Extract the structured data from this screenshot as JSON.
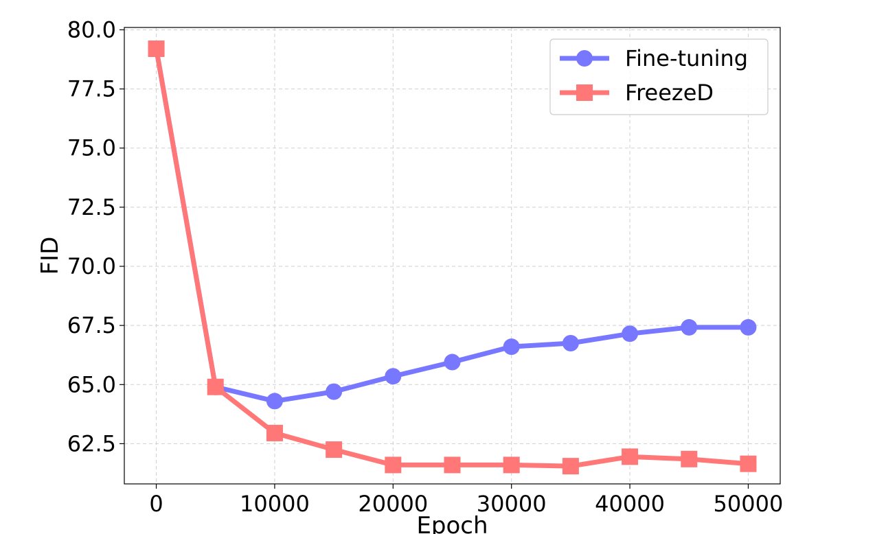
{
  "chart_data": {
    "type": "line",
    "xlabel": "Epoch",
    "ylabel": "FID",
    "xlim": [
      -2700,
      52700
    ],
    "ylim": [
      60.8,
      80.1
    ],
    "xticks": [
      0,
      10000,
      20000,
      30000,
      40000,
      50000
    ],
    "xtick_labels": [
      "0",
      "10000",
      "20000",
      "30000",
      "40000",
      "50000"
    ],
    "yticks": [
      62.5,
      65.0,
      67.5,
      70.0,
      72.5,
      75.0,
      77.5,
      80.0
    ],
    "ytick_labels": [
      "62.5",
      "65.0",
      "67.5",
      "70.0",
      "72.5",
      "75.0",
      "77.5",
      "80.0"
    ],
    "grid": true,
    "legend_position": "top-right",
    "x": [
      0,
      5000,
      10000,
      15000,
      20000,
      25000,
      30000,
      35000,
      40000,
      45000,
      50000
    ],
    "series": [
      {
        "name": "Fine-tuning",
        "color": "#7777ff",
        "marker": "circle",
        "values": [
          79.2,
          64.9,
          64.3,
          64.7,
          65.35,
          65.95,
          66.6,
          66.75,
          67.15,
          67.42,
          67.42
        ]
      },
      {
        "name": "FreezeD",
        "color": "#ff7777",
        "marker": "square",
        "values": [
          79.2,
          64.9,
          62.95,
          62.25,
          61.6,
          61.6,
          61.6,
          61.55,
          61.95,
          61.85,
          61.65
        ]
      }
    ]
  }
}
